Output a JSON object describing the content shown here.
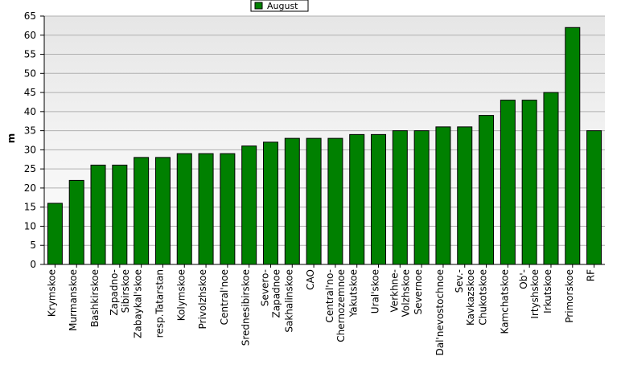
{
  "chart_data": {
    "type": "bar",
    "ylabel": "m",
    "categories": [
      "Krymskoe",
      "Murmanskoe",
      "Bashkirskoe",
      "Zapadno-\nSibirskoe",
      "Zabaykal'skoe",
      "resp.Tatarstan",
      "Kolymskoe",
      "Privolzhskoe",
      "Central'noe",
      "Srednesibirskoe",
      "Severo-\nZapadnoe",
      "Sakhalinskoe",
      "CAO",
      "Central'no-\nChernozemnoe",
      "Yakutskoe",
      "Ural'skoe",
      "Verkhne-\nVolzhskoe",
      "Severnoe",
      "Dal'nevostochnoe",
      "Sev.-\nKavkazskoe",
      "Chukotskoe",
      "Kamchatskoe",
      "Ob'-\nIrtyshskoe",
      "Irkutskoe",
      "Primorskoe",
      "RF"
    ],
    "series": [
      {
        "name": "August",
        "color": "#008000",
        "values": [
          16,
          22,
          26,
          26,
          28,
          28,
          29,
          29,
          29,
          31,
          32,
          33,
          33,
          33,
          34,
          34,
          35,
          35,
          36,
          36,
          39,
          43,
          43,
          45,
          62,
          35
        ]
      }
    ],
    "ylim": [
      0,
      65
    ],
    "yticks": [
      0,
      5,
      10,
      15,
      20,
      25,
      30,
      35,
      40,
      45,
      50,
      55,
      60,
      65
    ],
    "grid": true,
    "legend": "top"
  }
}
